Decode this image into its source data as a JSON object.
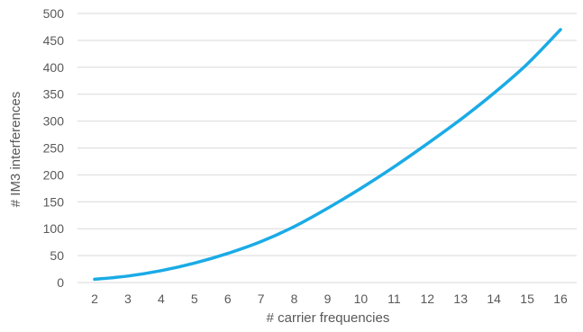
{
  "chart_data": {
    "type": "line",
    "title": "",
    "xlabel": "# carrier frequencies",
    "ylabel": "# IM3 interferences",
    "x": [
      2,
      3,
      4,
      5,
      6,
      7,
      8,
      9,
      10,
      11,
      12,
      13,
      14,
      15,
      16
    ],
    "series": [
      {
        "name": "",
        "color": "#1aabe6",
        "values": [
          6,
          12,
          22,
          36,
          54,
          76,
          104,
          138,
          175,
          215,
          258,
          303,
          352,
          406,
          470
        ]
      }
    ],
    "xticks": [
      "2",
      "3",
      "4",
      "5",
      "6",
      "7",
      "8",
      "9",
      "10",
      "11",
      "12",
      "13",
      "14",
      "15",
      "16"
    ],
    "yticks": [
      "0",
      "50",
      "100",
      "150",
      "200",
      "250",
      "300",
      "350",
      "400",
      "450",
      "500"
    ],
    "ylim": [
      0,
      500
    ],
    "grid": "horizontal",
    "legend": "none",
    "colors": {
      "gridline": "#d9d9d9",
      "text": "#595959",
      "series": "#1aabe6"
    }
  }
}
